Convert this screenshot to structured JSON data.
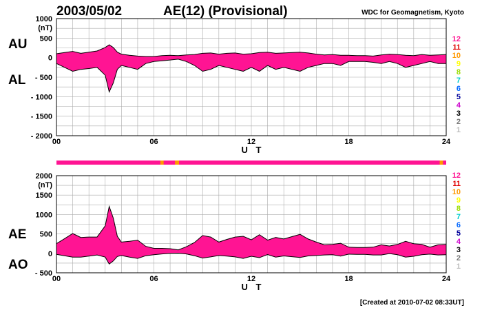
{
  "header": {
    "date": "2003/05/02",
    "title": "AE(12) (Provisional)",
    "organization": "WDC for Geomagnetism, Kyoto"
  },
  "footer": {
    "created": "[Created at 2010-07-02 08:33UT]"
  },
  "level_legend": {
    "labels": [
      "12",
      "11",
      "10",
      "9",
      "8",
      "7",
      "6",
      "5",
      "4",
      "3",
      "2",
      "1"
    ],
    "colors": [
      "#ff1493",
      "#e00000",
      "#ff9900",
      "#ffff00",
      "#99dd00",
      "#00cccc",
      "#0066ff",
      "#000099",
      "#cc00cc",
      "#000000",
      "#777777",
      "#bbbbbb"
    ]
  },
  "colors": {
    "fill": "#ff1493",
    "outline": "#000000",
    "grid": "#aaaaaa",
    "low_station": "#ff9900"
  },
  "status_bar_color": "#ff1493",
  "chart_data": [
    {
      "type": "area",
      "panel": "AU/AL",
      "side_labels": [
        "AU",
        "AL"
      ],
      "ylabel": "(nT)",
      "xlabel": "U T",
      "x_ticks": [
        "00",
        "06",
        "12",
        "18",
        "24"
      ],
      "y_ticks": [
        "1000",
        "500",
        "0",
        "- 500",
        "- 1000",
        "- 1500",
        "- 2000"
      ],
      "xlim": [
        0,
        24
      ],
      "ylim": [
        -2000,
        1000
      ],
      "y_tick_values": [
        1000,
        500,
        0,
        -500,
        -1000,
        -1500,
        -2000
      ],
      "grid": true,
      "hours": [
        0,
        0.5,
        1,
        1.5,
        2,
        2.5,
        3,
        3.25,
        3.5,
        3.75,
        4,
        4.5,
        5,
        5.5,
        6,
        6.5,
        7,
        7.5,
        8,
        8.5,
        9,
        9.5,
        10,
        10.5,
        11,
        11.5,
        12,
        12.5,
        13,
        13.5,
        14,
        14.5,
        15,
        15.5,
        16,
        16.5,
        17,
        17.5,
        18,
        18.5,
        19,
        19.5,
        20,
        20.5,
        21,
        21.5,
        22,
        22.5,
        23,
        23.5,
        24
      ],
      "AU": [
        100,
        130,
        160,
        110,
        140,
        170,
        260,
        330,
        260,
        140,
        90,
        60,
        40,
        30,
        30,
        50,
        60,
        50,
        70,
        80,
        110,
        120,
        90,
        110,
        120,
        90,
        100,
        130,
        140,
        110,
        120,
        130,
        140,
        120,
        90,
        70,
        80,
        60,
        60,
        50,
        50,
        40,
        70,
        90,
        80,
        60,
        50,
        80,
        60,
        70,
        80
      ],
      "AL": [
        -150,
        -250,
        -350,
        -300,
        -280,
        -250,
        -450,
        -880,
        -650,
        -300,
        -200,
        -250,
        -300,
        -150,
        -100,
        -80,
        -60,
        -40,
        -100,
        -200,
        -350,
        -300,
        -200,
        -250,
        -300,
        -350,
        -250,
        -350,
        -200,
        -300,
        -250,
        -300,
        -350,
        -250,
        -200,
        -150,
        -150,
        -200,
        -100,
        -100,
        -100,
        -120,
        -150,
        -100,
        -150,
        -250,
        -200,
        -150,
        -100,
        -150,
        -150
      ]
    },
    {
      "type": "area",
      "panel": "AE/AO",
      "side_labels": [
        "AE",
        "AO"
      ],
      "ylabel": "(nT)",
      "xlabel": "U T",
      "x_ticks": [
        "00",
        "06",
        "12",
        "18",
        "24"
      ],
      "y_ticks": [
        "2000",
        "1500",
        "1000",
        "500",
        "0",
        "- 500"
      ],
      "xlim": [
        0,
        24
      ],
      "ylim": [
        -500,
        2000
      ],
      "y_tick_values": [
        2000,
        1500,
        1000,
        500,
        0,
        -500
      ],
      "grid": true,
      "hours": [
        0,
        0.5,
        1,
        1.5,
        2,
        2.5,
        3,
        3.25,
        3.5,
        3.75,
        4,
        4.5,
        5,
        5.5,
        6,
        6.5,
        7,
        7.5,
        8,
        8.5,
        9,
        9.5,
        10,
        10.5,
        11,
        11.5,
        12,
        12.5,
        13,
        13.5,
        14,
        14.5,
        15,
        15.5,
        16,
        16.5,
        17,
        17.5,
        18,
        18.5,
        19,
        19.5,
        20,
        20.5,
        21,
        21.5,
        22,
        22.5,
        23,
        23.5,
        24
      ],
      "AE": [
        250,
        380,
        510,
        410,
        420,
        420,
        710,
        1210,
        910,
        440,
        290,
        310,
        340,
        180,
        130,
        130,
        120,
        90,
        170,
        280,
        460,
        420,
        290,
        360,
        420,
        440,
        350,
        480,
        340,
        410,
        370,
        430,
        490,
        370,
        290,
        220,
        230,
        260,
        160,
        150,
        150,
        160,
        220,
        190,
        230,
        310,
        250,
        230,
        160,
        220,
        230
      ],
      "AO": [
        -25,
        -60,
        -95,
        -95,
        -70,
        -40,
        -95,
        -275,
        -195,
        -80,
        -55,
        -95,
        -130,
        -60,
        -35,
        -15,
        0,
        5,
        -15,
        -60,
        -120,
        -90,
        -55,
        -70,
        -90,
        -130,
        -75,
        -110,
        -30,
        -95,
        -65,
        -85,
        -105,
        -65,
        -55,
        -40,
        -35,
        -70,
        -20,
        -25,
        -25,
        -40,
        -40,
        -5,
        -35,
        -95,
        -75,
        -35,
        -20,
        -40,
        -35
      ]
    }
  ]
}
